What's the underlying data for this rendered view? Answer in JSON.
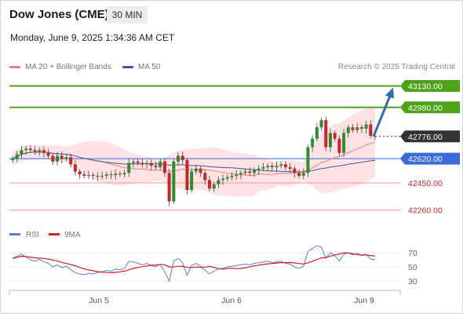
{
  "header": {
    "instrument": "Dow Jones (CME)",
    "timeframe": "30 MIN",
    "datetime": "Monday, June 9, 2025 1:34:36 AM CET"
  },
  "legend": {
    "ma20_label": "MA 20 + Bollinger Bands",
    "ma50_label": "MA 50",
    "credit": "Research © 2025 Trading Central"
  },
  "colors": {
    "resistance": "#4ea21a",
    "support": "#f19a9a",
    "pivot": "#3a6bd9",
    "current": "#333333",
    "arrow": "#2f6db0",
    "candle_up": "#2e8b2e",
    "candle_down": "#c0282a",
    "bb_fill": "#fde0e0",
    "ma20": "#f08080",
    "ma50": "#3b5998",
    "rsi": "#5b7fd6",
    "rsi_ma": "#d42020"
  },
  "chart_data": {
    "type": "candlestick",
    "instrument": "Dow Jones (CME)",
    "timeframe": "30 MIN",
    "ylim": [
      42180,
      43210
    ],
    "x_ticks": [
      "Jun 5",
      "Jun 6",
      "Jun 9"
    ],
    "levels": [
      {
        "value": 43130.0,
        "label": "43130.00",
        "kind": "resistance"
      },
      {
        "value": 42980.0,
        "label": "42980.00",
        "kind": "resistance"
      },
      {
        "value": 42776.0,
        "label": "42776.00",
        "kind": "current"
      },
      {
        "value": 42620.0,
        "label": "42620.00",
        "kind": "pivot"
      },
      {
        "value": 42450.0,
        "label": "42450.00",
        "kind": "support"
      },
      {
        "value": 42260.0,
        "label": "42260.00",
        "kind": "support"
      }
    ],
    "price_close": [
      42620,
      42650,
      42680,
      42690,
      42680,
      42670,
      42680,
      42660,
      42640,
      42600,
      42640,
      42620,
      42630,
      42580,
      42530,
      42510,
      42500,
      42505,
      42500,
      42495,
      42500,
      42510,
      42505,
      42515,
      42510,
      42520,
      42590,
      42600,
      42590,
      42580,
      42590,
      42570,
      42560,
      42600,
      42520,
      42320,
      42600,
      42640,
      42610,
      42400,
      42530,
      42550,
      42520,
      42470,
      42410,
      42440,
      42470,
      42480,
      42490,
      42500,
      42510,
      42520,
      42530,
      42520,
      42540,
      42550,
      42560,
      42570,
      42560,
      42570,
      42580,
      42560,
      42550,
      42520,
      42500,
      42520,
      42700,
      42760,
      42840,
      42890,
      42700,
      42800,
      42760,
      42660,
      42800,
      42840,
      42820,
      42840,
      42830,
      42860,
      42780,
      42776
    ],
    "rsi": [
      62,
      65,
      68,
      64,
      60,
      58,
      61,
      57,
      55,
      50,
      53,
      49,
      51,
      46,
      42,
      40,
      39,
      41,
      40,
      42,
      43,
      45,
      44,
      47,
      46,
      48,
      58,
      57,
      55,
      53,
      55,
      52,
      50,
      54,
      43,
      30,
      58,
      62,
      56,
      38,
      52,
      55,
      51,
      45,
      40,
      44,
      47,
      48,
      50,
      51,
      52,
      53,
      54,
      53,
      55,
      56,
      57,
      58,
      56,
      57,
      58,
      55,
      54,
      50,
      48,
      51,
      72,
      76,
      80,
      78,
      62,
      70,
      66,
      58,
      68,
      70,
      67,
      69,
      67,
      68,
      61,
      60
    ],
    "rsi_ticks": [
      70,
      50,
      30
    ],
    "rsi_legend": [
      "RSI",
      "9MA"
    ],
    "forecast_target": 43130.0
  }
}
